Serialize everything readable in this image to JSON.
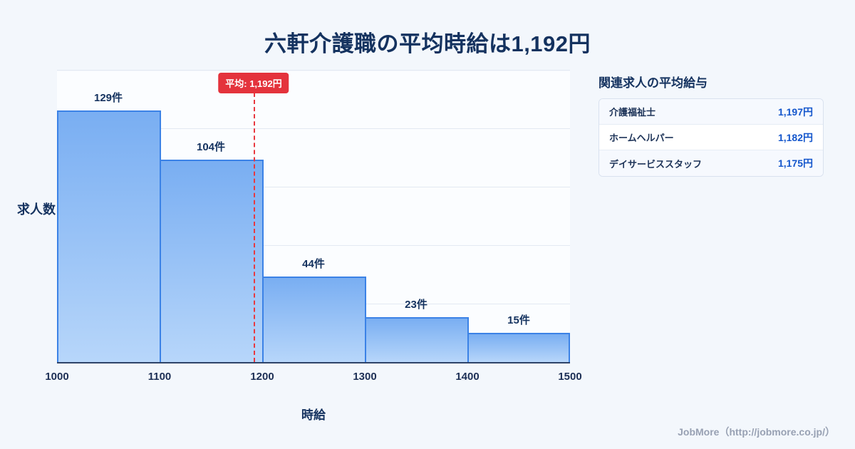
{
  "page": {
    "title": "六軒介護職の平均時給は1,192円",
    "footer": "JobMore（http://jobmore.co.jp/）"
  },
  "chart_data": {
    "type": "bar",
    "title": "六軒介護職の平均時給は1,192円",
    "xlabel": "時給",
    "ylabel": "求人数",
    "x_range": [
      1000,
      1500
    ],
    "x_ticks": [
      "1000",
      "1100",
      "1200",
      "1300",
      "1400",
      "1500"
    ],
    "ylim": [
      0,
      150
    ],
    "grid": true,
    "bins": [
      {
        "range": [
          1000,
          1100
        ],
        "count": 129,
        "label": "129件"
      },
      {
        "range": [
          1100,
          1200
        ],
        "count": 104,
        "label": "104件"
      },
      {
        "range": [
          1200,
          1300
        ],
        "count": 44,
        "label": "44件"
      },
      {
        "range": [
          1300,
          1400
        ],
        "count": 23,
        "label": "23件"
      },
      {
        "range": [
          1400,
          1500
        ],
        "count": 15,
        "label": "15件"
      }
    ],
    "average_line": {
      "value": 1192,
      "label": "平均: 1,192円",
      "color": "#e8383f"
    },
    "bar_colors": {
      "fill_top": "#79aef2",
      "fill_bottom": "#b7d6fa",
      "border": "#3b82e6"
    }
  },
  "side_panel": {
    "heading": "関連求人の平均給与",
    "rows": [
      {
        "job": "介護福祉士",
        "salary": "1,197円"
      },
      {
        "job": "ホームヘルパー",
        "salary": "1,182円"
      },
      {
        "job": "デイサービススタッフ",
        "salary": "1,175円"
      }
    ]
  }
}
